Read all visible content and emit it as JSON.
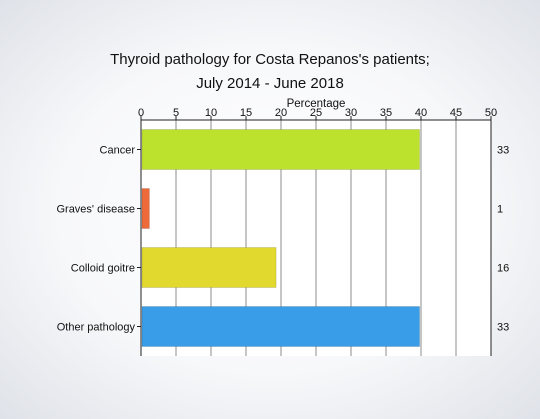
{
  "chart_data": {
    "type": "bar",
    "orientation": "horizontal",
    "title_lines": [
      "Thyroid pathology for Costa Repanos's patients;",
      "July 2014 - June 2018"
    ],
    "xlabel": "Percentage",
    "x_axis_position": "top",
    "xlim": [
      0,
      50
    ],
    "xticks": [
      0,
      5,
      10,
      15,
      20,
      25,
      30,
      35,
      40,
      45,
      50
    ],
    "grid": "vertical",
    "categories": [
      "Cancer",
      "Graves' disease",
      "Colloid goitre",
      "Other pathology"
    ],
    "values": [
      39.8,
      1.2,
      19.3,
      39.8
    ],
    "data_labels": [
      "33",
      "1",
      "16",
      "33"
    ],
    "colors": [
      "#bde22e",
      "#ee6a3a",
      "#e2d92e",
      "#3a9de8"
    ]
  }
}
